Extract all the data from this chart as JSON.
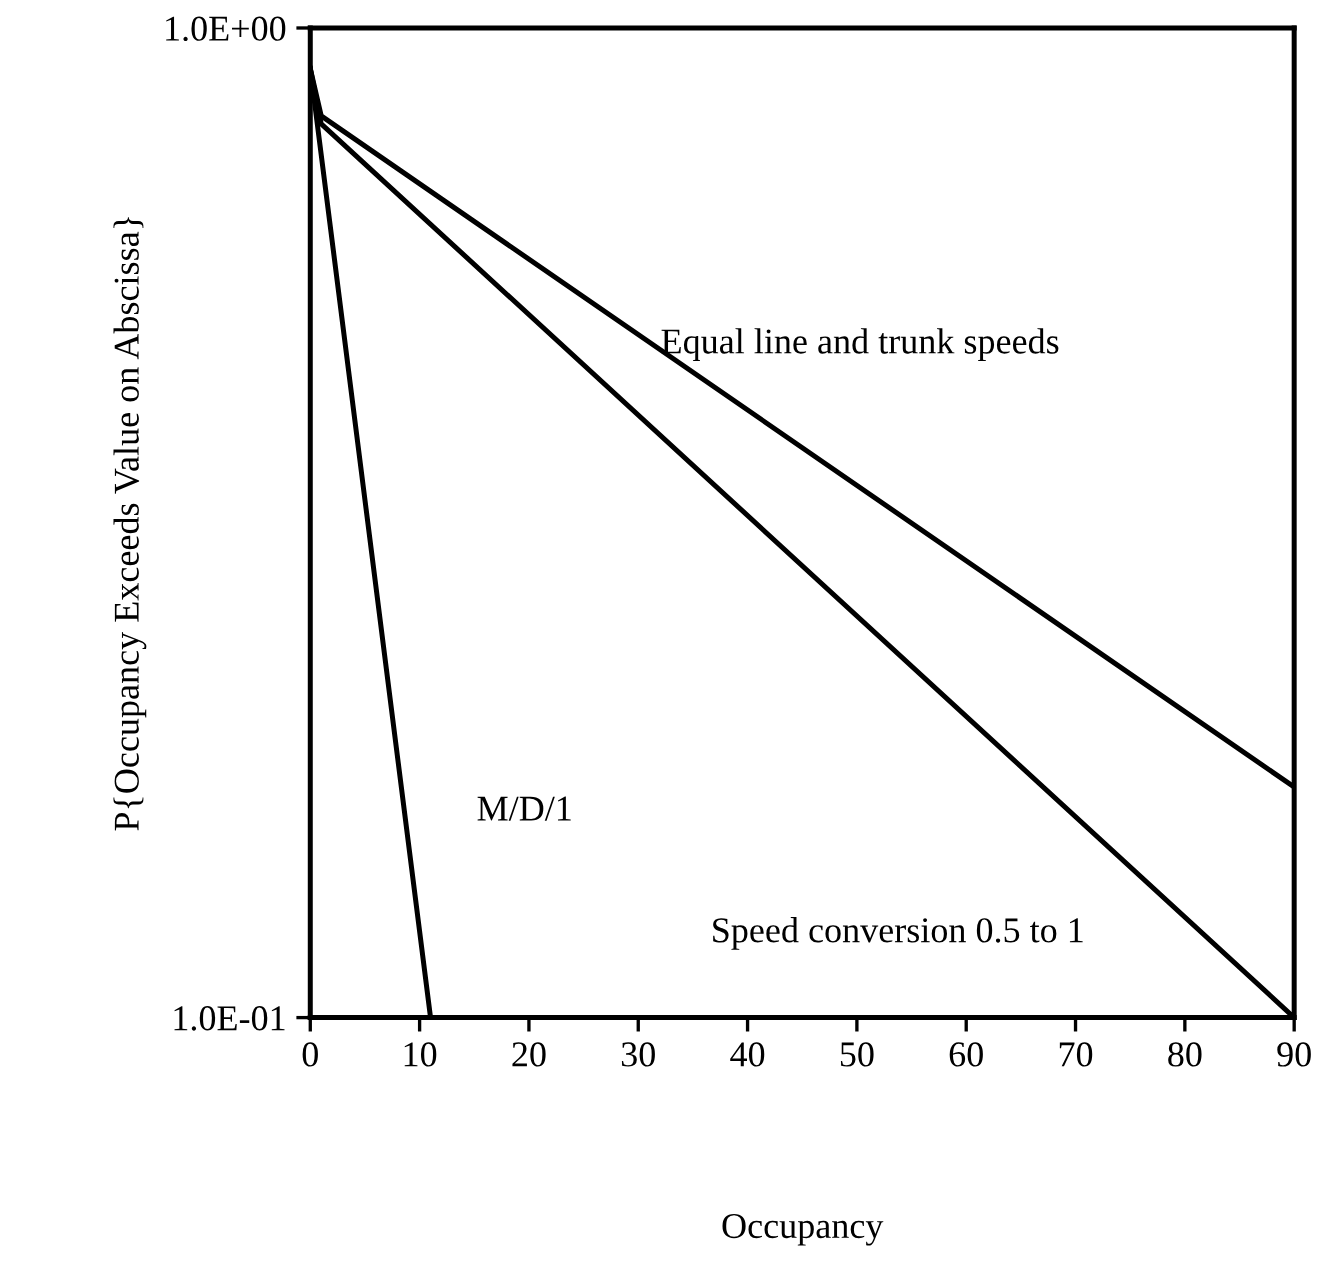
{
  "chart_data": {
    "type": "line",
    "xlabel": "Occupancy",
    "ylabel": "P{Occupancy Exceeds Value on Abscissa}",
    "log": "y",
    "xlim": [
      0,
      90
    ],
    "ylim": [
      0.1,
      1
    ],
    "xticks": [
      0,
      10,
      20,
      30,
      40,
      50,
      60,
      70,
      80,
      90
    ],
    "yticks": [
      {
        "value": 0.1,
        "label": "1.0E-01"
      },
      {
        "value": 1,
        "label": "1.0E+00"
      }
    ],
    "grid": false,
    "legend": false,
    "marker": "none",
    "line_style": "solid",
    "series": [
      {
        "name": "M/D/1",
        "color": "#000000",
        "x": [
          0,
          11
        ],
        "values": [
          0.91,
          0.1
        ]
      },
      {
        "name": "Equal line and trunk speeds",
        "color": "#000000",
        "x": [
          0,
          1,
          90
        ],
        "values": [
          0.91,
          0.815,
          0.171
        ]
      },
      {
        "name": "Speed conversion 0.5 to 1",
        "color": "#000000",
        "x": [
          0,
          1,
          90
        ],
        "values": [
          0.91,
          0.8,
          0.1
        ]
      }
    ]
  }
}
